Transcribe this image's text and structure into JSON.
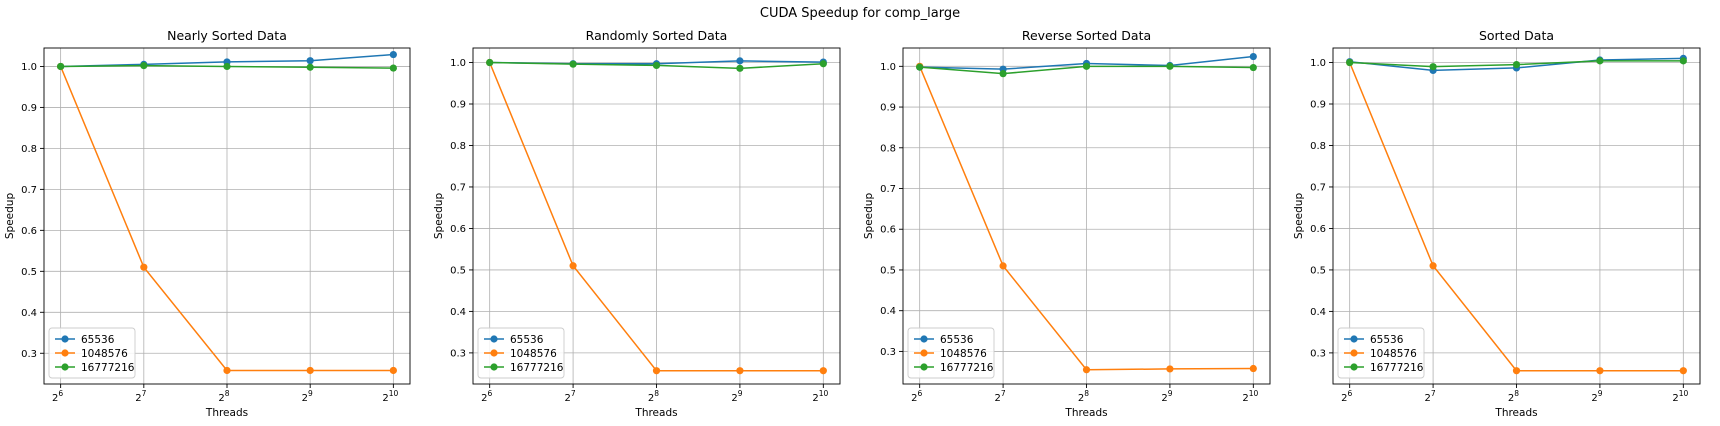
{
  "suptitle": "CUDA Speedup for comp_large",
  "colors": {
    "s0": "#1f77b4",
    "s1": "#ff7f0e",
    "s2": "#2ca02c",
    "grid": "#b0b0b0"
  },
  "chart_data": [
    {
      "type": "line",
      "title": "Nearly Sorted Data",
      "xlabel": "Threads",
      "ylabel": "Speedup",
      "x": [
        64,
        128,
        256,
        512,
        1024
      ],
      "x_tick_base": "2",
      "x_tick_exps": [
        "6",
        "7",
        "8",
        "9",
        "10"
      ],
      "ylim": [
        0.225,
        1.045
      ],
      "y_ticks": [
        0.3,
        0.4,
        0.5,
        0.6,
        0.7,
        0.8,
        0.9,
        1.0
      ],
      "y_tick_labels": [
        "0.3",
        "0.4",
        "0.5",
        "0.6",
        "0.7",
        "0.8",
        "0.9",
        "1.0"
      ],
      "grid": true,
      "legend": "lower-left",
      "series": [
        {
          "name": "65536",
          "values": [
            1.0,
            1.005,
            1.011,
            1.014,
            1.029
          ]
        },
        {
          "name": "1048576",
          "values": [
            1.0,
            0.51,
            0.258,
            0.258,
            0.258
          ]
        },
        {
          "name": "16777216",
          "values": [
            1.0,
            1.002,
            1.0,
            0.998,
            0.996
          ]
        }
      ]
    },
    {
      "type": "line",
      "title": "Randomly Sorted Data",
      "xlabel": "Threads",
      "ylabel": "Speedup",
      "x": [
        64,
        128,
        256,
        512,
        1024
      ],
      "x_tick_base": "2",
      "x_tick_exps": [
        "6",
        "7",
        "8",
        "9",
        "10"
      ],
      "ylim": [
        0.225,
        1.035
      ],
      "y_ticks": [
        0.3,
        0.4,
        0.5,
        0.6,
        0.7,
        0.8,
        0.9,
        1.0
      ],
      "y_tick_labels": [
        "0.3",
        "0.4",
        "0.5",
        "0.6",
        "0.7",
        "0.8",
        "0.9",
        "1.0"
      ],
      "grid": true,
      "legend": "lower-left",
      "series": [
        {
          "name": "65536",
          "values": [
            1.0,
            0.997,
            0.997,
            1.004,
            1.001
          ]
        },
        {
          "name": "1048576",
          "values": [
            1.0,
            0.51,
            0.257,
            0.257,
            0.257
          ]
        },
        {
          "name": "16777216",
          "values": [
            1.0,
            0.996,
            0.993,
            0.986,
            0.997
          ]
        }
      ]
    },
    {
      "type": "line",
      "title": "Reverse Sorted Data",
      "xlabel": "Threads",
      "ylabel": "Speedup",
      "x": [
        64,
        128,
        256,
        512,
        1024
      ],
      "x_tick_base": "2",
      "x_tick_exps": [
        "6",
        "7",
        "8",
        "9",
        "10"
      ],
      "ylim": [
        0.22,
        1.045
      ],
      "y_ticks": [
        0.3,
        0.4,
        0.5,
        0.6,
        0.7,
        0.8,
        0.9,
        1.0
      ],
      "y_tick_labels": [
        "0.3",
        "0.4",
        "0.5",
        "0.6",
        "0.7",
        "0.8",
        "0.9",
        "1.0"
      ],
      "grid": true,
      "legend": "lower-left",
      "series": [
        {
          "name": "65536",
          "values": [
            0.998,
            0.993,
            1.007,
            1.002,
            1.024
          ]
        },
        {
          "name": "1048576",
          "values": [
            1.0,
            0.51,
            0.255,
            0.257,
            0.258
          ]
        },
        {
          "name": "16777216",
          "values": [
            0.998,
            0.982,
            1.0,
            1.0,
            0.997
          ]
        }
      ]
    },
    {
      "type": "line",
      "title": "Sorted Data",
      "xlabel": "Threads",
      "ylabel": "Speedup",
      "x": [
        64,
        128,
        256,
        512,
        1024
      ],
      "x_tick_base": "2",
      "x_tick_exps": [
        "6",
        "7",
        "8",
        "9",
        "10"
      ],
      "ylim": [
        0.225,
        1.035
      ],
      "y_ticks": [
        0.3,
        0.4,
        0.5,
        0.6,
        0.7,
        0.8,
        0.9,
        1.0
      ],
      "y_tick_labels": [
        "0.3",
        "0.4",
        "0.5",
        "0.6",
        "0.7",
        "0.8",
        "0.9",
        "1.0"
      ],
      "grid": true,
      "legend": "lower-left",
      "series": [
        {
          "name": "65536",
          "values": [
            1.002,
            0.981,
            0.987,
            1.006,
            1.01
          ]
        },
        {
          "name": "1048576",
          "values": [
            1.0,
            0.51,
            0.257,
            0.257,
            0.257
          ]
        },
        {
          "name": "16777216",
          "values": [
            1.0,
            0.99,
            0.995,
            1.004,
            1.004
          ]
        }
      ]
    }
  ]
}
